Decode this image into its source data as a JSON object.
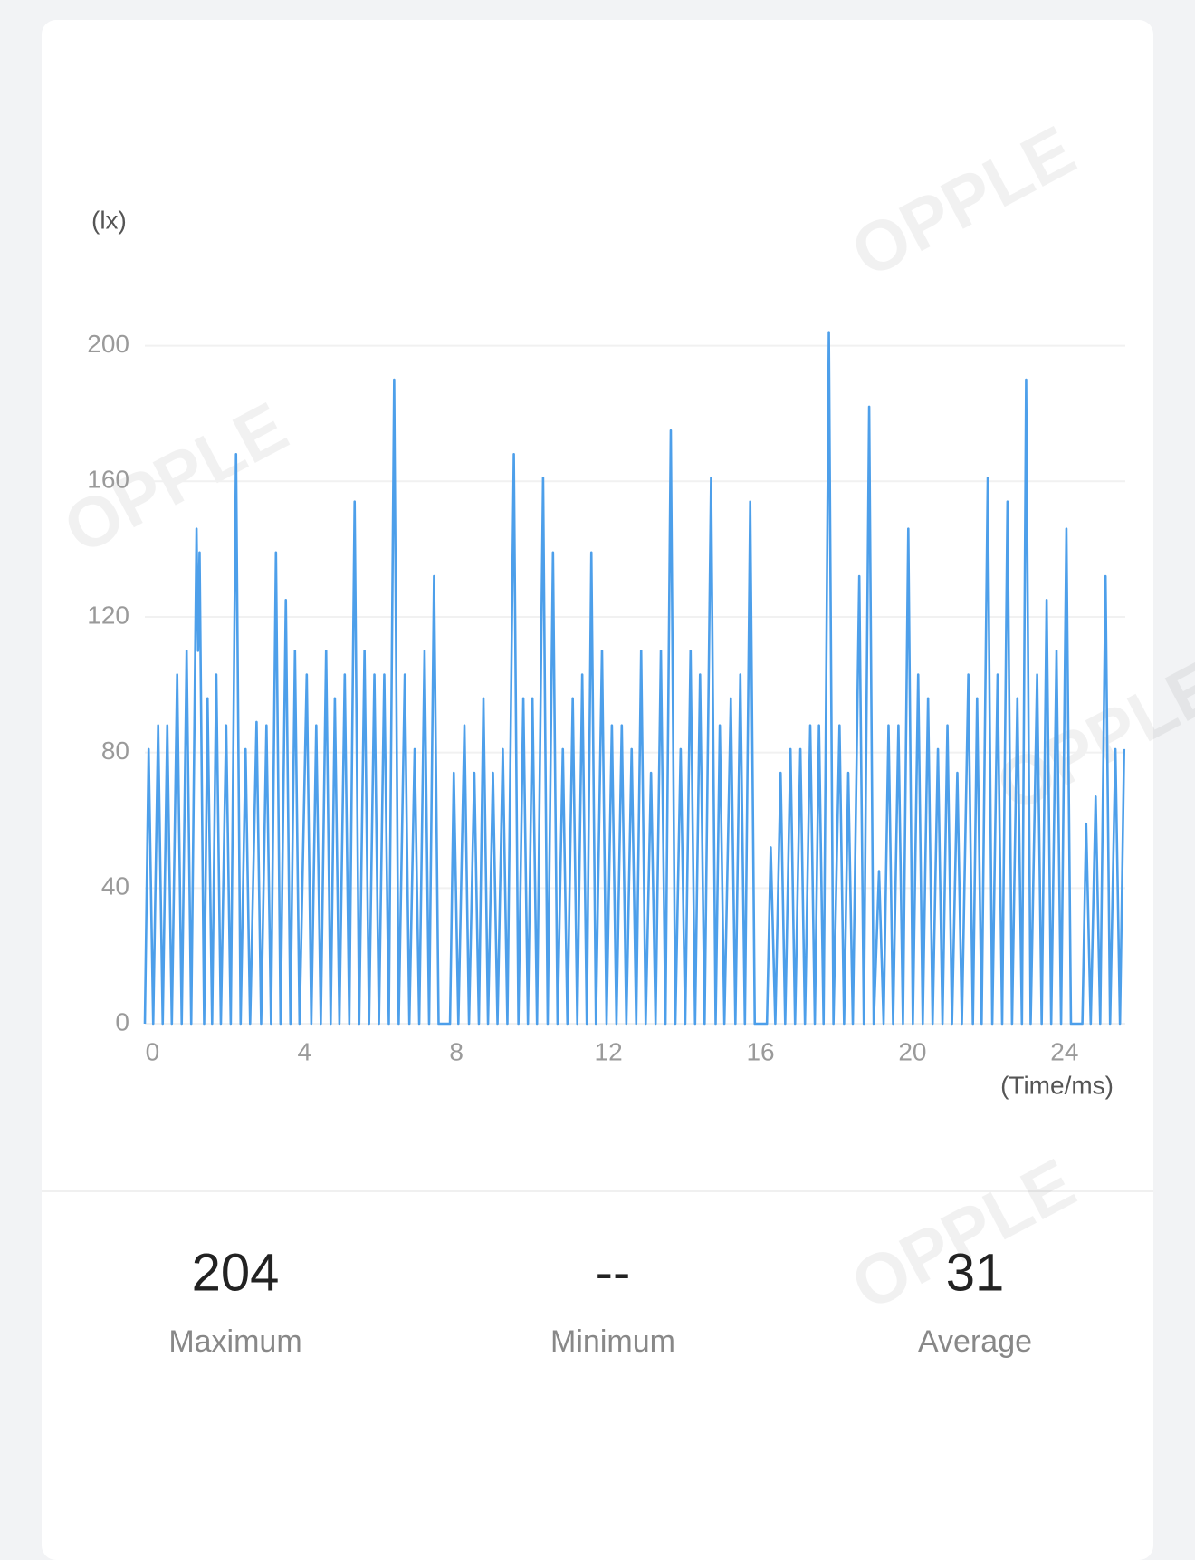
{
  "watermark": "OPPLE",
  "chart_data": {
    "type": "line",
    "ylabel": "(lx)",
    "xlabel": "(Time/ms)",
    "color": "#4d9fea",
    "grid": true,
    "xlim": [
      -0.2,
      25.6
    ],
    "xticks": [
      0,
      4,
      8,
      12,
      16,
      20,
      24
    ],
    "ylim": [
      0,
      200
    ],
    "yticks": [
      0,
      40,
      80,
      120,
      160,
      200
    ],
    "x": [
      -0.2,
      -0.1,
      0.02,
      0.15,
      0.27,
      0.39,
      0.51,
      0.65,
      0.77,
      0.9,
      1.02,
      1.16,
      1.2,
      1.24,
      1.36,
      1.45,
      1.57,
      1.68,
      1.8,
      1.94,
      2.06,
      2.2,
      2.32,
      2.45,
      2.57,
      2.74,
      2.86,
      3.0,
      3.12,
      3.25,
      3.37,
      3.51,
      3.63,
      3.75,
      3.87,
      4.06,
      4.18,
      4.31,
      4.43,
      4.57,
      4.69,
      4.8,
      4.92,
      5.06,
      5.18,
      5.32,
      5.44,
      5.58,
      5.7,
      5.84,
      5.96,
      6.1,
      6.22,
      6.36,
      6.48,
      6.64,
      6.76,
      6.9,
      7.02,
      7.16,
      7.28,
      7.41,
      7.53,
      7.83,
      7.93,
      8.05,
      8.21,
      8.33,
      8.47,
      8.59,
      8.71,
      8.83,
      8.96,
      9.08,
      9.22,
      9.34,
      9.51,
      9.63,
      9.76,
      9.88,
      10.0,
      10.12,
      10.28,
      10.4,
      10.54,
      10.66,
      10.8,
      10.92,
      11.06,
      11.18,
      11.31,
      11.43,
      11.55,
      11.67,
      11.83,
      11.95,
      12.09,
      12.21,
      12.35,
      12.47,
      12.61,
      12.73,
      12.86,
      12.98,
      13.12,
      13.24,
      13.38,
      13.5,
      13.64,
      13.76,
      13.9,
      14.02,
      14.16,
      14.28,
      14.41,
      14.53,
      14.7,
      14.82,
      14.93,
      15.05,
      15.22,
      15.34,
      15.47,
      15.59,
      15.73,
      15.85,
      16.17,
      16.27,
      16.39,
      16.53,
      16.65,
      16.79,
      16.91,
      17.05,
      17.17,
      17.31,
      17.43,
      17.54,
      17.66,
      17.8,
      17.92,
      18.08,
      18.2,
      18.31,
      18.43,
      18.6,
      18.72,
      18.86,
      18.98,
      19.12,
      19.24,
      19.37,
      19.49,
      19.63,
      19.75,
      19.89,
      20.01,
      20.15,
      20.27,
      20.41,
      20.53,
      20.67,
      20.79,
      20.92,
      21.04,
      21.18,
      21.3,
      21.47,
      21.59,
      21.7,
      21.82,
      21.98,
      22.1,
      22.24,
      22.36,
      22.5,
      22.62,
      22.76,
      22.88,
      22.99,
      23.11,
      23.28,
      23.4,
      23.53,
      23.65,
      23.79,
      23.91,
      24.05,
      24.17,
      24.47,
      24.57,
      24.69,
      24.82,
      24.94,
      25.08,
      25.2,
      25.34,
      25.46,
      25.57
    ],
    "values": [
      0,
      81,
      0,
      88,
      0,
      88,
      0,
      103,
      0,
      110,
      0,
      146,
      110,
      139,
      0,
      96,
      0,
      103,
      0,
      88,
      0,
      168,
      0,
      81,
      0,
      89,
      0,
      88,
      0,
      139,
      0,
      125,
      0,
      110,
      0,
      103,
      0,
      88,
      0,
      110,
      0,
      96,
      0,
      103,
      0,
      154,
      0,
      110,
      0,
      103,
      0,
      103,
      0,
      190,
      0,
      103,
      0,
      81,
      0,
      110,
      0,
      132,
      0,
      0,
      74,
      0,
      88,
      0,
      74,
      0,
      96,
      0,
      74,
      0,
      81,
      0,
      168,
      0,
      96,
      0,
      96,
      0,
      161,
      0,
      139,
      0,
      81,
      0,
      96,
      0,
      103,
      0,
      139,
      0,
      110,
      0,
      88,
      0,
      88,
      0,
      81,
      0,
      110,
      0,
      74,
      0,
      110,
      0,
      175,
      0,
      81,
      0,
      110,
      0,
      103,
      0,
      161,
      0,
      88,
      0,
      96,
      0,
      103,
      0,
      154,
      0,
      0,
      52,
      0,
      74,
      0,
      81,
      0,
      81,
      0,
      88,
      0,
      88,
      0,
      204,
      0,
      88,
      0,
      74,
      0,
      132,
      0,
      182,
      0,
      45,
      0,
      88,
      0,
      88,
      0,
      146,
      0,
      103,
      0,
      96,
      0,
      81,
      0,
      88,
      0,
      74,
      0,
      103,
      0,
      96,
      0,
      161,
      0,
      103,
      0,
      154,
      0,
      96,
      0,
      190,
      0,
      103,
      0,
      125,
      0,
      110,
      0,
      146,
      0,
      0,
      59,
      0,
      67,
      0,
      132,
      0,
      81,
      0,
      81
    ]
  },
  "stats": [
    {
      "value": "204",
      "label": "Maximum"
    },
    {
      "value": "--",
      "label": "Minimum"
    },
    {
      "value": "31",
      "label": "Average"
    }
  ]
}
